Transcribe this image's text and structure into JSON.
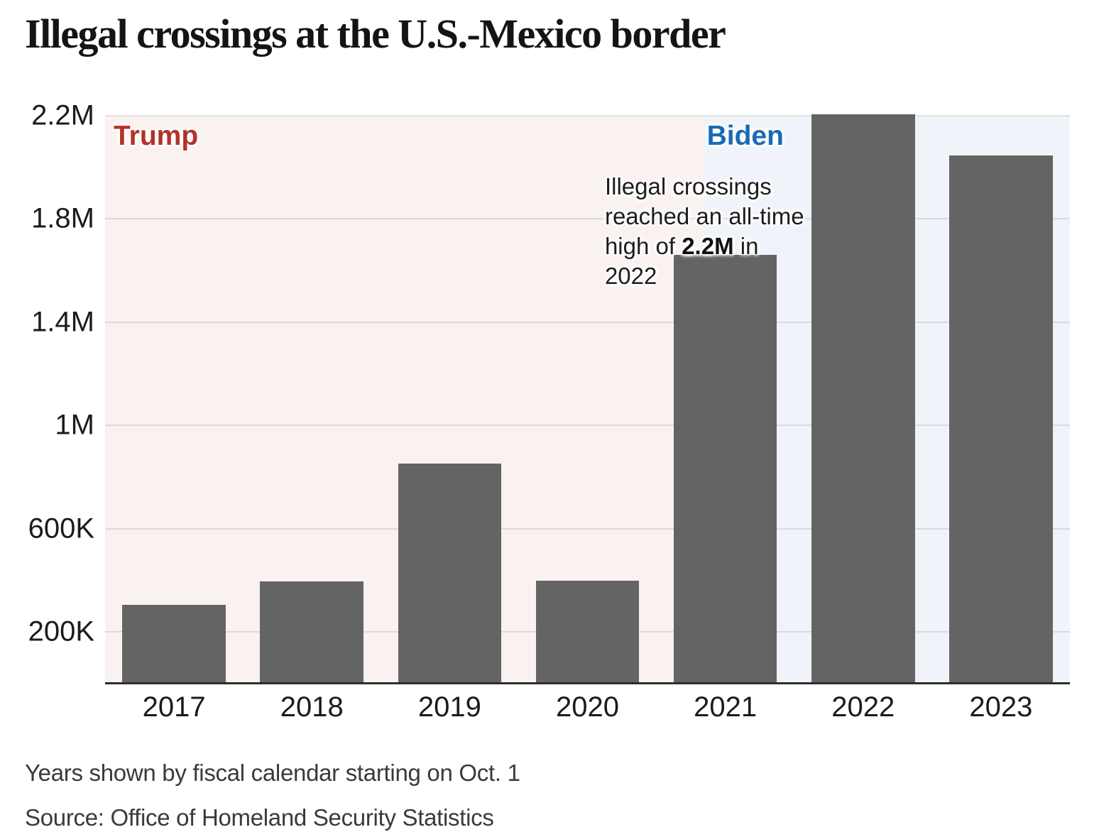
{
  "title": "Illegal crossings at the U.S.-Mexico border",
  "chart_data": {
    "type": "bar",
    "title": "Illegal crossings at the U.S.-Mexico border",
    "categories": [
      "2017",
      "2018",
      "2019",
      "2020",
      "2021",
      "2022",
      "2023"
    ],
    "values": [
      304000,
      397000,
      852000,
      400000,
      1660000,
      2206000,
      2045000
    ],
    "xlabel": "",
    "ylabel": "",
    "ylim": [
      0,
      2200000
    ],
    "grid": "horizontal",
    "legend": "none",
    "bar_color": "#646464",
    "y_ticks": [
      {
        "label": "2.2M",
        "value": 2200000
      },
      {
        "label": "1.8M",
        "value": 1800000
      },
      {
        "label": "1.4M",
        "value": 1400000
      },
      {
        "label": "1M",
        "value": 1000000
      },
      {
        "label": "600K",
        "value": 600000
      },
      {
        "label": "200K",
        "value": 200000
      }
    ],
    "bands": [
      {
        "name": "Trump",
        "width_fraction": 0.62,
        "bg": "#faf2f0",
        "label_color": "#b5302a"
      },
      {
        "name": "Biden",
        "width_fraction": 0.38,
        "bg": "#f0f4fa",
        "label_color": "#1a6ab5"
      }
    ],
    "annotation": {
      "line1": "Illegal crossings",
      "line2": "reached an all-time",
      "line3_pre": "high of ",
      "line3_bold": "2.2M",
      "line3_post": " in",
      "line4": "2022"
    }
  },
  "notes": {
    "fiscal": "Years shown by fiscal calendar starting on Oct. 1",
    "source": "Source: Office of Homeland Security Statistics"
  }
}
